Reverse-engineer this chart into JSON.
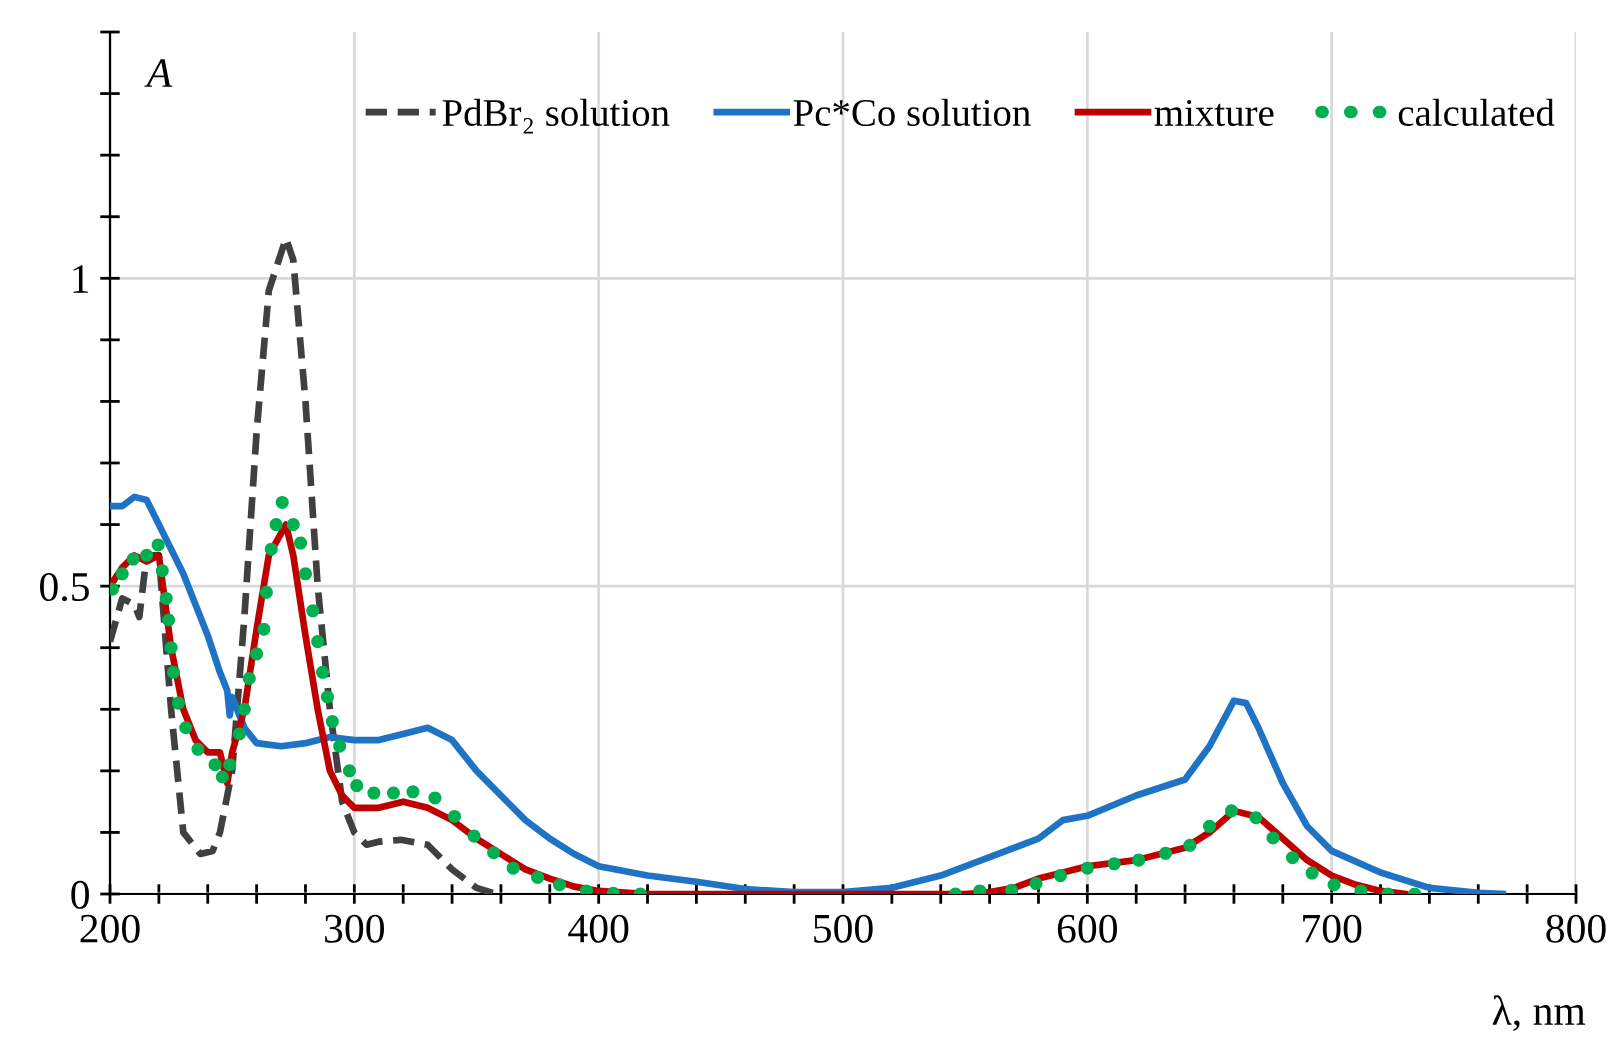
{
  "chart_data": {
    "type": "line",
    "ylabel": "A",
    "xlabel": "λ, nm",
    "xlim": [
      200,
      800
    ],
    "ylim": [
      0,
      1.4
    ],
    "xticks": [
      200,
      {
        "value": 220,
        "label": null
      },
      {
        "value": 240,
        "label": null
      },
      {
        "value": 260,
        "label": null
      },
      {
        "value": 280,
        "label": null
      },
      300,
      {
        "value": 320,
        "label": null
      },
      {
        "value": 340,
        "label": null
      },
      {
        "value": 360,
        "label": null
      },
      {
        "value": 380,
        "label": null
      },
      400,
      {
        "value": 420,
        "label": null
      },
      {
        "value": 440,
        "label": null
      },
      {
        "value": 460,
        "label": null
      },
      {
        "value": 480,
        "label": null
      },
      500,
      {
        "value": 520,
        "label": null
      },
      {
        "value": 540,
        "label": null
      },
      {
        "value": 560,
        "label": null
      },
      {
        "value": 580,
        "label": null
      },
      600,
      {
        "value": 620,
        "label": null
      },
      {
        "value": 640,
        "label": null
      },
      {
        "value": 660,
        "label": null
      },
      {
        "value": 680,
        "label": null
      },
      700,
      {
        "value": 720,
        "label": null
      },
      {
        "value": 740,
        "label": null
      },
      {
        "value": 760,
        "label": null
      },
      {
        "value": 780,
        "label": null
      },
      800
    ],
    "yticks": [
      0,
      {
        "value": 0.1,
        "label": null
      },
      {
        "value": 0.2,
        "label": null
      },
      {
        "value": 0.3,
        "label": null
      },
      {
        "value": 0.4,
        "label": null
      },
      0.5,
      {
        "value": 0.6,
        "label": null
      },
      {
        "value": 0.7,
        "label": null
      },
      {
        "value": 0.8,
        "label": null
      },
      {
        "value": 0.9,
        "label": null
      },
      1,
      {
        "value": 1.1,
        "label": null
      },
      {
        "value": 1.2,
        "label": null
      },
      {
        "value": 1.3,
        "label": null
      },
      {
        "value": 1.4,
        "label": null
      }
    ],
    "grid": true,
    "legend": "top",
    "series": [
      {
        "name": "PdBr₂ solution",
        "color": "#404040",
        "line_style": "dashed",
        "marker": "none",
        "x": [
          200,
          205,
          210,
          212,
          215,
          220,
          225,
          230,
          237,
          242,
          245,
          250,
          255,
          260,
          265,
          272,
          275,
          280,
          285,
          290,
          295,
          300,
          305,
          310,
          319,
          330,
          340,
          350,
          358
        ],
        "values": [
          0.41,
          0.48,
          0.47,
          0.45,
          0.55,
          0.55,
          0.3,
          0.1,
          0.065,
          0.07,
          0.1,
          0.2,
          0.45,
          0.75,
          0.98,
          1.065,
          1.03,
          0.8,
          0.5,
          0.3,
          0.15,
          0.1,
          0.08,
          0.085,
          0.088,
          0.08,
          0.04,
          0.01,
          0
        ]
      },
      {
        "name": "Pc*Co solution",
        "color": "#1f73c4",
        "line_style": "solid",
        "marker": "none",
        "x": [
          200,
          205,
          210,
          215,
          220,
          230,
          240,
          245,
          248,
          249,
          250,
          255,
          260,
          270,
          280,
          290,
          300,
          310,
          320,
          330,
          340,
          350,
          360,
          370,
          380,
          390,
          400,
          420,
          440,
          460,
          480,
          500,
          520,
          540,
          560,
          580,
          590,
          600,
          620,
          640,
          650,
          660,
          665,
          670,
          680,
          690,
          700,
          720,
          740,
          760,
          770
        ],
        "values": [
          0.63,
          0.63,
          0.645,
          0.64,
          0.6,
          0.52,
          0.42,
          0.36,
          0.33,
          0.29,
          0.32,
          0.27,
          0.245,
          0.24,
          0.245,
          0.255,
          0.25,
          0.25,
          0.26,
          0.27,
          0.25,
          0.2,
          0.16,
          0.12,
          0.09,
          0.065,
          0.045,
          0.03,
          0.02,
          0.008,
          0.003,
          0.003,
          0.01,
          0.03,
          0.06,
          0.09,
          0.12,
          0.127,
          0.16,
          0.186,
          0.24,
          0.314,
          0.31,
          0.27,
          0.18,
          0.11,
          0.07,
          0.035,
          0.01,
          0.002,
          0
        ]
      },
      {
        "name": "mixture",
        "color": "#c00000",
        "line_style": "solid",
        "marker": "none",
        "x": [
          200,
          205,
          210,
          215,
          220,
          225,
          230,
          235,
          240,
          245,
          248,
          250,
          255,
          260,
          265,
          272,
          275,
          280,
          285,
          290,
          295,
          300,
          310,
          320,
          330,
          340,
          350,
          360,
          370,
          380,
          390,
          400,
          420,
          550,
          560,
          570,
          580,
          590,
          600,
          620,
          640,
          650,
          660,
          670,
          680,
          690,
          700,
          710,
          720,
          730
        ],
        "values": [
          0.5,
          0.53,
          0.55,
          0.54,
          0.55,
          0.4,
          0.3,
          0.25,
          0.23,
          0.23,
          0.18,
          0.23,
          0.3,
          0.43,
          0.55,
          0.6,
          0.55,
          0.42,
          0.3,
          0.2,
          0.16,
          0.14,
          0.14,
          0.15,
          0.14,
          0.12,
          0.09,
          0.065,
          0.04,
          0.025,
          0.012,
          0.005,
          0,
          0,
          0.003,
          0.01,
          0.025,
          0.035,
          0.045,
          0.055,
          0.075,
          0.1,
          0.135,
          0.125,
          0.09,
          0.055,
          0.03,
          0.015,
          0.005,
          0
        ]
      },
      {
        "name": "calculated",
        "color": "#00b050",
        "type": "scatter",
        "marker": "circle",
        "x": [
          201,
          205,
          209.5,
          215,
          219.7,
          221.4,
          223,
          224,
          225,
          226,
          228,
          231,
          236,
          243,
          246,
          249,
          253,
          255,
          257,
          260,
          263,
          264,
          266,
          268,
          270.5,
          275,
          278,
          280,
          283,
          285,
          287,
          289,
          291,
          294,
          298,
          301,
          308,
          316,
          324,
          333,
          341,
          349,
          357,
          365,
          375,
          384,
          395,
          406,
          417,
          546,
          556,
          569,
          579,
          589,
          600,
          611,
          621,
          632,
          642,
          650,
          659,
          669,
          676,
          684,
          692,
          701,
          712,
          723,
          734
        ],
        "values": [
          0.495,
          0.52,
          0.544,
          0.55,
          0.567,
          0.525,
          0.48,
          0.445,
          0.4,
          0.36,
          0.31,
          0.27,
          0.235,
          0.21,
          0.19,
          0.21,
          0.26,
          0.3,
          0.35,
          0.39,
          0.43,
          0.49,
          0.56,
          0.6,
          0.636,
          0.6,
          0.57,
          0.52,
          0.46,
          0.41,
          0.36,
          0.32,
          0.28,
          0.24,
          0.2,
          0.176,
          0.164,
          0.164,
          0.166,
          0.156,
          0.126,
          0.094,
          0.067,
          0.042,
          0.027,
          0.015,
          0.005,
          0.001,
          0,
          0,
          0.005,
          0.006,
          0.017,
          0.03,
          0.042,
          0.049,
          0.055,
          0.066,
          0.079,
          0.11,
          0.135,
          0.124,
          0.091,
          0.059,
          0.034,
          0.015,
          0.005,
          0,
          0
        ]
      }
    ]
  }
}
